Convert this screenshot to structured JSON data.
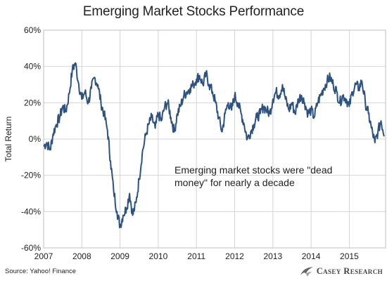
{
  "chart_data": {
    "type": "line",
    "title": "Emerging Market Stocks Performance",
    "xlabel": "",
    "ylabel": "Total Return",
    "x_tick_labels": [
      "2007",
      "2008",
      "2009",
      "2010",
      "2011",
      "2012",
      "2013",
      "2014",
      "2015"
    ],
    "y_tick_labels": [
      "-60%",
      "-40%",
      "-20%",
      "0%",
      "20%",
      "40%",
      "60%"
    ],
    "ylim": [
      -60,
      60
    ],
    "xlim": [
      2007.0,
      2015.95
    ],
    "grid": "horizontal and vertical",
    "line_color": "#2b5280",
    "annotation": "Emerging market stocks were \"dead money\" for nearly a decade",
    "series": [
      {
        "x": [
          2007.0,
          2007.08,
          2007.17,
          2007.25,
          2007.33,
          2007.42,
          2007.5,
          2007.58,
          2007.67,
          2007.75,
          2007.83,
          2007.92,
          2008.0,
          2008.08,
          2008.17,
          2008.25,
          2008.33,
          2008.42,
          2008.5,
          2008.58,
          2008.67,
          2008.75,
          2008.83,
          2008.92,
          2009.0,
          2009.08,
          2009.17,
          2009.25,
          2009.33,
          2009.42,
          2009.5,
          2009.58,
          2009.67,
          2009.75,
          2009.83,
          2009.92,
          2010.0,
          2010.08,
          2010.17,
          2010.25,
          2010.33,
          2010.42,
          2010.5,
          2010.58,
          2010.67,
          2010.75,
          2010.83,
          2010.92,
          2011.0,
          2011.08,
          2011.17,
          2011.25,
          2011.33,
          2011.42,
          2011.5,
          2011.58,
          2011.67,
          2011.75,
          2011.83,
          2011.92,
          2012.0,
          2012.08,
          2012.17,
          2012.25,
          2012.33,
          2012.42,
          2012.5,
          2012.58,
          2012.67,
          2012.75,
          2012.83,
          2012.92,
          2013.0,
          2013.08,
          2013.17,
          2013.25,
          2013.33,
          2013.42,
          2013.5,
          2013.58,
          2013.67,
          2013.75,
          2013.83,
          2013.92,
          2014.0,
          2014.08,
          2014.17,
          2014.25,
          2014.33,
          2014.42,
          2014.5,
          2014.58,
          2014.67,
          2014.75,
          2014.83,
          2014.92,
          2015.0,
          2015.08,
          2015.17,
          2015.25,
          2015.33,
          2015.42,
          2015.5,
          2015.58,
          2015.67,
          2015.75,
          2015.83,
          2015.92
        ],
        "y": [
          -4,
          -2,
          -6,
          3,
          8,
          12,
          18,
          15,
          25,
          38,
          42,
          30,
          22,
          26,
          20,
          28,
          34,
          30,
          20,
          14,
          5,
          -12,
          -28,
          -40,
          -48,
          -42,
          -38,
          -30,
          -42,
          -35,
          -22,
          -8,
          2,
          8,
          12,
          6,
          14,
          10,
          18,
          20,
          12,
          4,
          14,
          18,
          24,
          26,
          28,
          30,
          33,
          35,
          30,
          36,
          30,
          26,
          20,
          12,
          4,
          14,
          20,
          16,
          24,
          20,
          14,
          8,
          0,
          4,
          8,
          12,
          14,
          18,
          16,
          14,
          22,
          26,
          24,
          30,
          22,
          16,
          20,
          14,
          22,
          24,
          20,
          14,
          16,
          12,
          20,
          24,
          28,
          32,
          34,
          30,
          26,
          20,
          24,
          22,
          18,
          26,
          30,
          28,
          32,
          20,
          14,
          6,
          -2,
          4,
          10,
          2
        ]
      }
    ]
  },
  "source_note": "Source: Yahoo! Finance",
  "brand": {
    "name": "Casey Research"
  }
}
